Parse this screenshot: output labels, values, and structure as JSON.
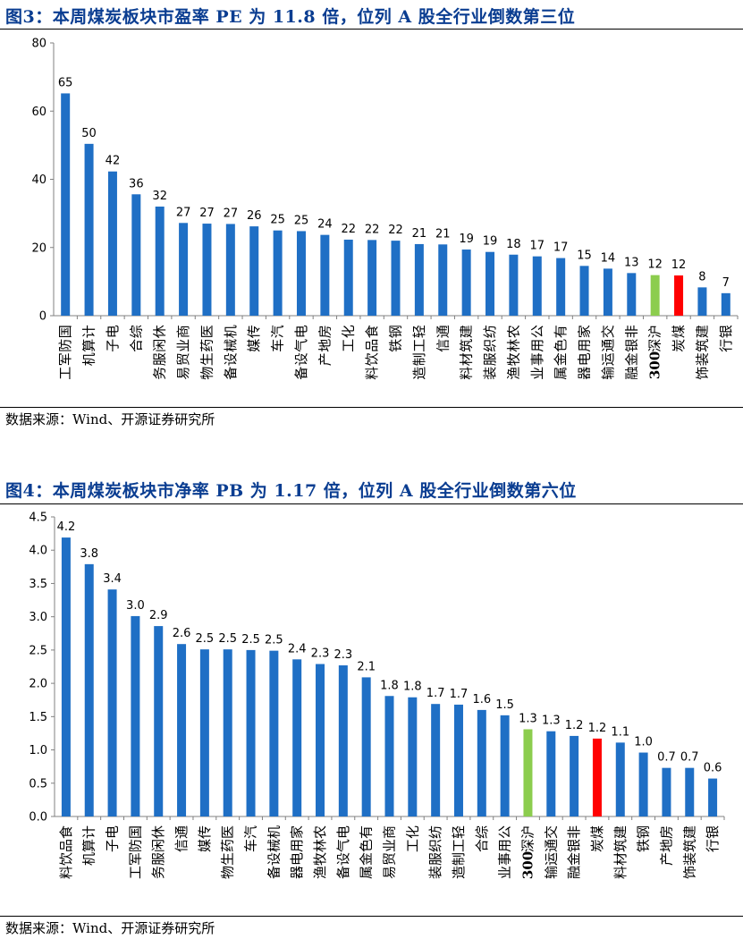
{
  "figures": [
    {
      "title": "图3：本周煤炭板块市盈率 PE 为 11.8 倍，位列 A 股全行业倒数第三位",
      "source": "数据来源：Wind、开源证券研究所"
    },
    {
      "title": "图4：本周煤炭板块市净率 PB 为 1.17 倍，位列 A 股全行业倒数第六位",
      "source": "数据来源：Wind、开源证券研究所"
    }
  ],
  "colors": {
    "default": "#1f6fc5",
    "hs300": "#8ccd4e",
    "coal": "#ff0000",
    "title": "#0a3d91"
  },
  "chart_data": [
    {
      "type": "bar",
      "ylim": [
        0,
        80
      ],
      "yticks": [
        0,
        20,
        40,
        60,
        80
      ],
      "grid": false,
      "categories": [
        "国防军工",
        "计算机",
        "电子",
        "综合",
        "休闲服务",
        "商业贸易",
        "医药生物",
        "机械设备",
        "传媒",
        "汽车",
        "电气设备",
        "房地产",
        "化工",
        "食品饮料",
        "钢铁",
        "轻工制造",
        "通信",
        "建筑材料",
        "纺织服装",
        "农林牧渔",
        "公用事业",
        "有色金属",
        "家用电器",
        "交通运输",
        "非银金融",
        "沪深300",
        "煤炭",
        "建筑装饰",
        "银行"
      ],
      "values": [
        65.2,
        50.4,
        42.3,
        35.6,
        32.0,
        27.2,
        27.0,
        26.9,
        26.2,
        25.0,
        24.8,
        23.7,
        22.3,
        22.2,
        22.0,
        21.0,
        20.9,
        19.4,
        18.7,
        17.9,
        17.4,
        16.9,
        14.6,
        13.8,
        12.5,
        11.9,
        11.8,
        8.3,
        6.6
      ],
      "labels": [
        "65",
        "50",
        "42",
        "36",
        "32",
        "27",
        "27",
        "27",
        "26",
        "25",
        "25",
        "24",
        "22",
        "22",
        "22",
        "21",
        "21",
        "19",
        "19",
        "18",
        "17",
        "17",
        "15",
        "14",
        "13",
        "12",
        "12",
        "8",
        "7"
      ],
      "highlight": {
        "沪深300": "hs300",
        "煤炭": "coal"
      }
    },
    {
      "type": "bar",
      "ylim": [
        0,
        4.5
      ],
      "yticks": [
        "0.0",
        "0.5",
        "1.0",
        "1.5",
        "2.0",
        "2.5",
        "3.0",
        "3.5",
        "4.0",
        "4.5"
      ],
      "grid": false,
      "categories": [
        "食品饮料",
        "计算机",
        "电子",
        "国防军工",
        "休闲服务",
        "通信",
        "传媒",
        "医药生物",
        "汽车",
        "机械设备",
        "家用电器",
        "农林牧渔",
        "电气设备",
        "有色金属",
        "商业贸易",
        "化工",
        "纺织服装",
        "轻工制造",
        "综合",
        "公用事业",
        "沪深300",
        "交通运输",
        "非银金融",
        "煤炭",
        "建筑材料",
        "钢铁",
        "房地产",
        "建筑装饰",
        "银行"
      ],
      "values": [
        4.19,
        3.79,
        3.41,
        3.01,
        2.86,
        2.59,
        2.51,
        2.51,
        2.5,
        2.49,
        2.36,
        2.29,
        2.27,
        2.09,
        1.81,
        1.79,
        1.69,
        1.68,
        1.6,
        1.52,
        1.31,
        1.28,
        1.21,
        1.17,
        1.11,
        0.96,
        0.73,
        0.73,
        0.57
      ],
      "labels": [
        "4.2",
        "3.8",
        "3.4",
        "3.0",
        "2.9",
        "2.6",
        "2.5",
        "2.5",
        "2.5",
        "2.5",
        "2.4",
        "2.3",
        "2.3",
        "2.1",
        "1.8",
        "1.8",
        "1.7",
        "1.7",
        "1.6",
        "1.5",
        "1.3",
        "1.3",
        "1.2",
        "1.2",
        "1.1",
        "1.0",
        "0.7",
        "0.7",
        "0.6"
      ],
      "highlight": {
        "沪深300": "hs300",
        "煤炭": "coal"
      }
    }
  ]
}
